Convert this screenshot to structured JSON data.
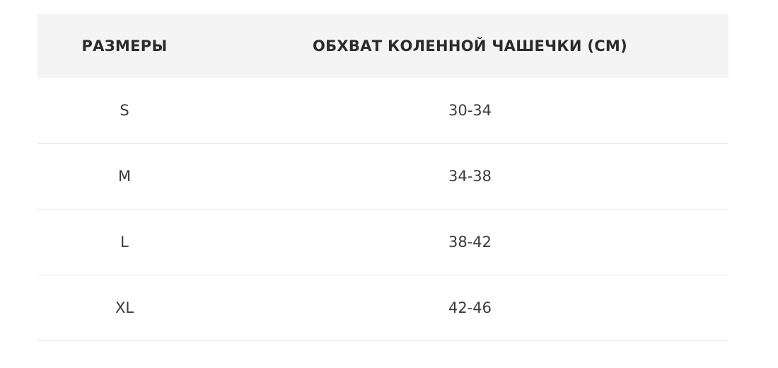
{
  "table": {
    "headers": [
      "РАЗМЕРЫ",
      "ОБХВАТ КОЛЕННОЙ ЧАШЕЧКИ (СМ)"
    ],
    "rows": [
      [
        "S",
        "30-34"
      ],
      [
        "M",
        "34-38"
      ],
      [
        "L",
        "38-42"
      ],
      [
        "XL",
        "42-46"
      ]
    ]
  }
}
